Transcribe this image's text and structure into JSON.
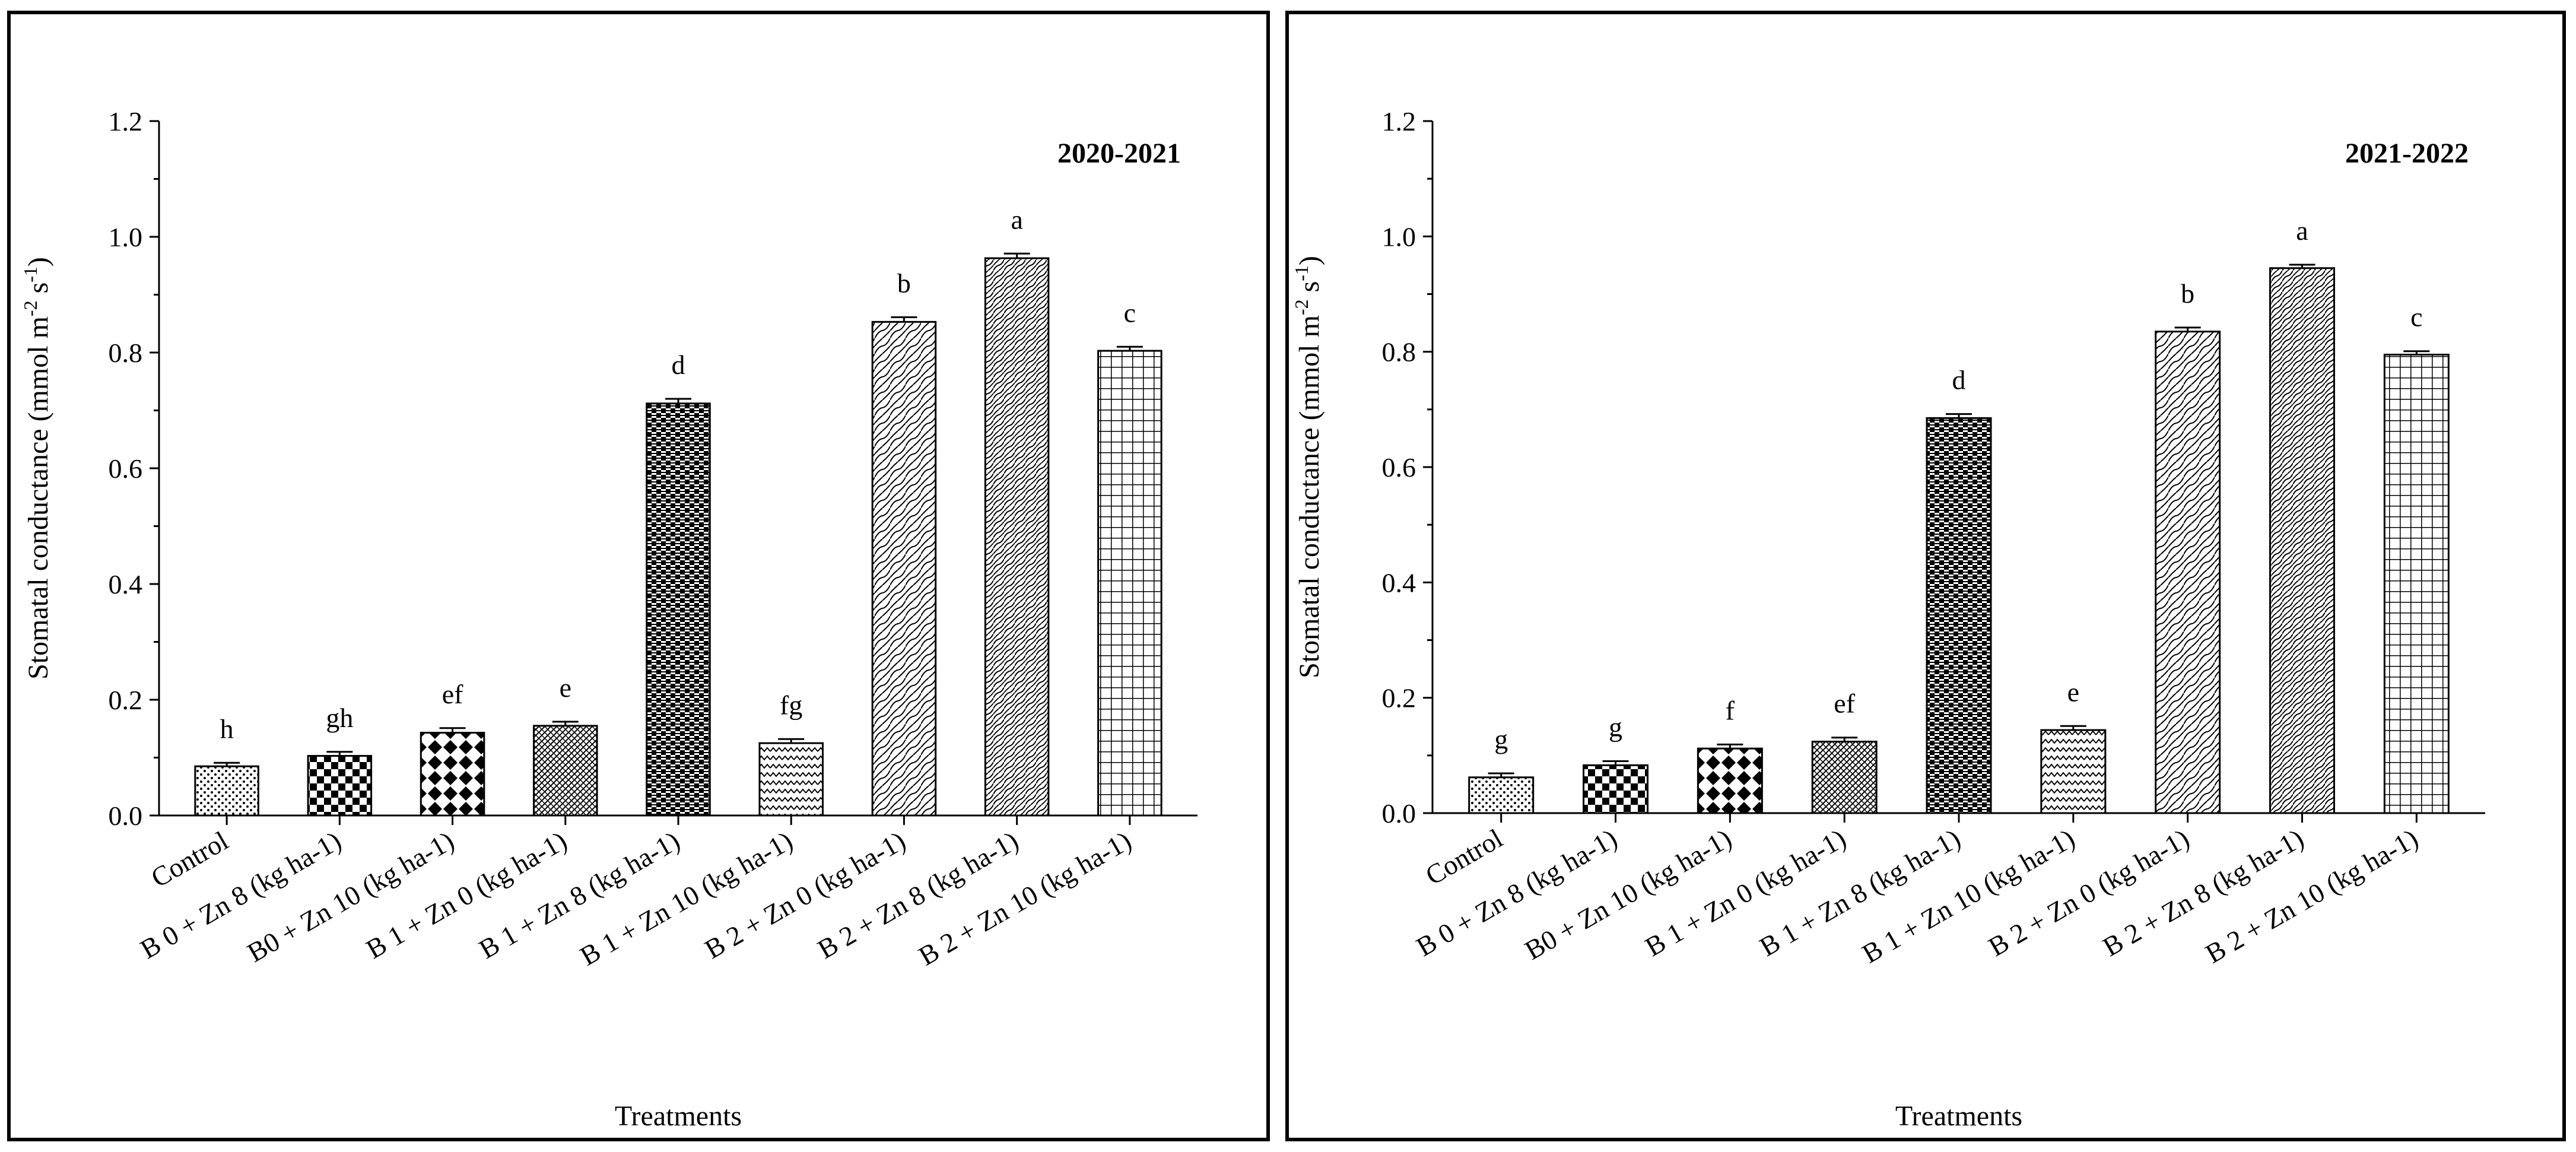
{
  "chart_data": [
    {
      "type": "bar",
      "title": "2020-2021",
      "xlabel": "Treatments",
      "ylabel": "Stomatal conductance (mmol m-2 s-1)",
      "ylabel_parts": {
        "main": "Stomatal conductance (mmol m",
        "sup1": "-2",
        "mid": " s",
        "sup2": "-1",
        "end": ")"
      },
      "ylim": [
        0,
        1.2
      ],
      "yticks": [
        "0.0",
        "0.2",
        "0.4",
        "0.6",
        "0.8",
        "1.0",
        "1.2"
      ],
      "categories": [
        "Control",
        "B 0 + Zn 8 (kg ha-1)",
        "B0 + Zn 10 (kg ha-1)",
        "B 1 + Zn 0 (kg ha-1)",
        "B 1 + Zn 8 (kg ha-1)",
        "B 1 + Zn 10 (kg ha-1)",
        "B 2 + Zn 0 (kg ha-1)",
        "B 2 + Zn 8 (kg ha-1)",
        "B 2 + Zn 10 (kg ha-1)"
      ],
      "values": [
        0.085,
        0.103,
        0.143,
        0.155,
        0.712,
        0.125,
        0.853,
        0.963,
        0.803
      ],
      "errors": [
        0.006,
        0.007,
        0.008,
        0.007,
        0.008,
        0.007,
        0.008,
        0.008,
        0.007
      ],
      "letters": [
        "h",
        "gh",
        "ef",
        "e",
        "d",
        "fg",
        "b",
        "a",
        "c"
      ],
      "patterns": [
        "dots",
        "checker",
        "diamond",
        "dense",
        "hatchcheck",
        "zigzag",
        "waves",
        "waves2",
        "grid"
      ]
    },
    {
      "type": "bar",
      "title": "2021-2022",
      "xlabel": "Treatments",
      "ylabel": "Stomatal conductance (mmol m-2 s-1)",
      "ylabel_parts": {
        "main": "Stomatal conductance (mmol m",
        "sup1": "-2",
        "mid": " s",
        "sup2": "-1",
        "end": ")"
      },
      "ylim": [
        0,
        1.2
      ],
      "yticks": [
        "0.0",
        "0.2",
        "0.4",
        "0.6",
        "0.8",
        "1.0",
        "1.2"
      ],
      "categories": [
        "Control",
        "B 0 + Zn 8 (kg ha-1)",
        "B0 + Zn 10 (kg ha-1)",
        "B 1 + Zn 0 (kg ha-1)",
        "B 1 + Zn 8 (kg ha-1)",
        "B 1 + Zn 10 (kg ha-1)",
        "B 2 + Zn 0 (kg ha-1)",
        "B 2 + Zn 8 (kg ha-1)",
        "B 2 + Zn 10 (kg ha-1)"
      ],
      "values": [
        0.062,
        0.083,
        0.112,
        0.124,
        0.685,
        0.144,
        0.835,
        0.945,
        0.795
      ],
      "errors": [
        0.007,
        0.007,
        0.007,
        0.007,
        0.007,
        0.007,
        0.007,
        0.006,
        0.006
      ],
      "letters": [
        "g",
        "g",
        "f",
        "ef",
        "d",
        "e",
        "b",
        "a",
        "c"
      ],
      "patterns": [
        "dots",
        "checker",
        "diamond",
        "dense",
        "hatchcheck",
        "zigzag",
        "waves",
        "waves2",
        "grid"
      ]
    }
  ]
}
